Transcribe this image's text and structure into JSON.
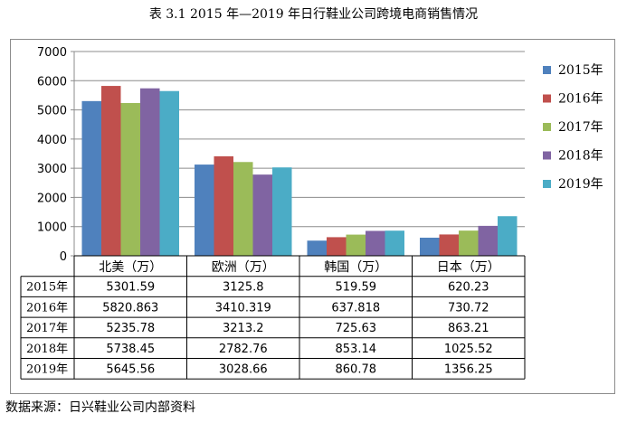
{
  "title": "表 3.1  2015 年—2019 年日行鞋业公司跨境电商销售情况",
  "source": "数据来源：日兴鞋业公司内部资料",
  "colors": {
    "2015年": "#4F81BD",
    "2016年": "#C0504D",
    "2017年": "#9BBB59",
    "2018年": "#8064A2",
    "2019年": "#4BACC6"
  },
  "chart_data": {
    "type": "bar",
    "title": "表 3.1  2015 年—2019 年日行鞋业公司跨境电商销售情况",
    "categories": [
      "北美（万）",
      "欧洲（万）",
      "韩国（万）",
      "日本（万）"
    ],
    "series": [
      {
        "name": "2015年",
        "values": [
          5301.59,
          3125.8,
          519.59,
          620.23
        ],
        "labels": [
          "5301.59",
          "3125.8",
          "519.59",
          "620.23"
        ]
      },
      {
        "name": "2016年",
        "values": [
          5820.863,
          3410.319,
          637.818,
          730.72
        ],
        "labels": [
          "5820.863",
          "3410.319",
          "637.818",
          "730.72"
        ]
      },
      {
        "name": "2017年",
        "values": [
          5235.78,
          3213.2,
          725.63,
          863.21
        ],
        "labels": [
          "5235.78",
          "3213.2",
          "725.63",
          "863.21"
        ]
      },
      {
        "name": "2018年",
        "values": [
          5738.45,
          2782.76,
          853.14,
          1025.52
        ],
        "labels": [
          "5738.45",
          "2782.76",
          "853.14",
          "1025.52"
        ]
      },
      {
        "name": "2019年",
        "values": [
          5645.56,
          3028.66,
          860.78,
          1356.25
        ],
        "labels": [
          "5645.56",
          "3028.66",
          "860.78",
          "1356.25"
        ]
      }
    ],
    "ylim": [
      0,
      7000
    ],
    "yticks": [
      "0",
      "1000",
      "2000",
      "3000",
      "4000",
      "5000",
      "6000",
      "7000"
    ],
    "ytick_values": [
      0,
      1000,
      2000,
      3000,
      4000,
      5000,
      6000,
      7000
    ],
    "xlabel": "",
    "ylabel": "",
    "grid": true,
    "legend_position": "right",
    "data_table": true
  }
}
